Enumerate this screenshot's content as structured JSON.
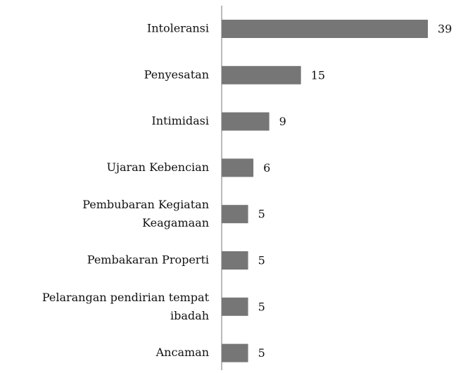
{
  "chart_data": {
    "type": "bar",
    "orientation": "horizontal",
    "categories": [
      "Intoleransi",
      "Penyesatan",
      "Intimidasi",
      "Ujaran Kebencian",
      "Pembubaran Kegiatan\nKeagamaan",
      "Pembakaran Properti",
      "Pelarangan pendirian tempat\nibadah",
      "Ancaman"
    ],
    "values": [
      39,
      15,
      9,
      6,
      5,
      5,
      5,
      5
    ],
    "color": "#767676"
  }
}
